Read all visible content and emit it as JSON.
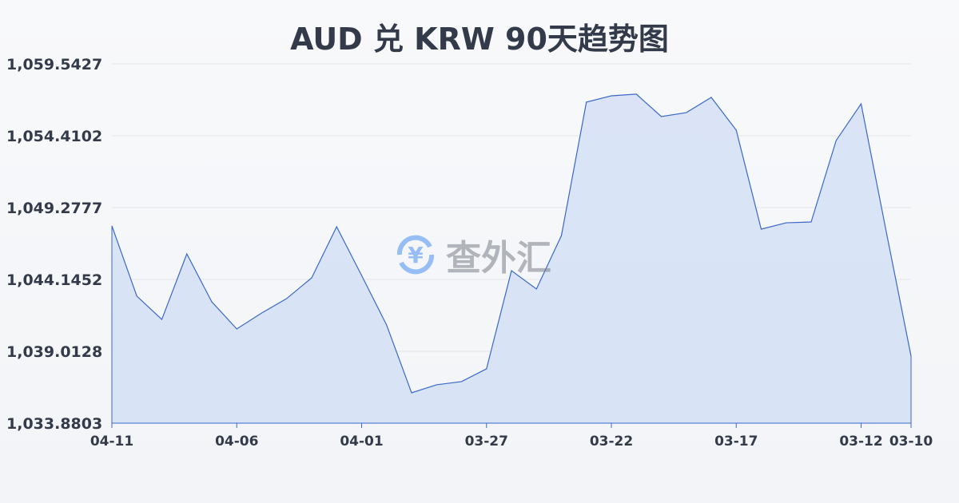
{
  "chart_data": {
    "type": "area",
    "title": "AUD 兑 KRW 90天趋势图",
    "xlabel": "",
    "ylabel": "",
    "x": [
      "04-11",
      "04-10",
      "04-09",
      "04-08",
      "04-07",
      "04-06",
      "04-05",
      "04-04",
      "04-03",
      "04-02",
      "04-01",
      "03-31",
      "03-30",
      "03-29",
      "03-28",
      "03-27",
      "03-26",
      "03-25",
      "03-24",
      "03-23",
      "03-22",
      "03-21",
      "03-20",
      "03-19",
      "03-18",
      "03-17",
      "03-16",
      "03-15",
      "03-14",
      "03-13",
      "03-12",
      "03-11",
      "03-10"
    ],
    "values": [
      1047.97,
      1042.95,
      1041.29,
      1045.97,
      1042.55,
      1040.61,
      1041.75,
      1042.78,
      1044.26,
      1047.91,
      1044.43,
      1040.89,
      1036.05,
      1036.62,
      1036.85,
      1037.76,
      1044.77,
      1043.46,
      1047.28,
      1056.81,
      1057.26,
      1057.38,
      1055.78,
      1056.06,
      1057.15,
      1054.81,
      1047.74,
      1048.19,
      1048.25,
      1054.07,
      1056.69,
      1047.62,
      1038.67
    ],
    "x_tick_labels": [
      "04-11",
      "04-06",
      "04-01",
      "03-27",
      "03-22",
      "03-17",
      "03-12",
      "03-10"
    ],
    "y_tick_labels": [
      "1,059.5427",
      "1,054.4102",
      "1,049.2777",
      "1,044.1452",
      "1,039.0128",
      "1,033.8803"
    ],
    "ylim": [
      1033.8803,
      1059.5427
    ],
    "grid": true,
    "colors": {
      "line": "#3a68c8",
      "fill": "#d6e1f5",
      "text": "#333b4a",
      "grid": "#e3e5ea"
    }
  },
  "watermark": {
    "text": "查外汇",
    "icon": "yen-exchange-icon"
  }
}
